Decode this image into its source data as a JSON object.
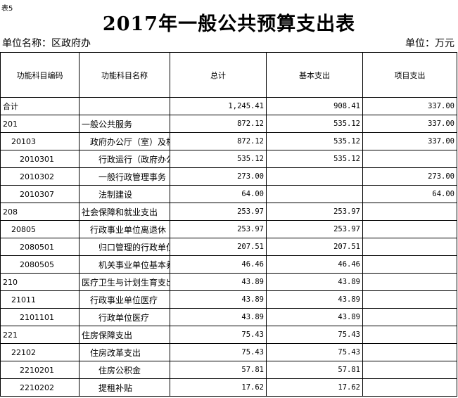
{
  "table_tag": "表5",
  "title": "2017年一般公共预算支出表",
  "unit_name": "单位名称：区政府办",
  "unit": "单位：万元",
  "headers": [
    "功能科目编码",
    "功能科目名称",
    "总计",
    "基本支出",
    "项目支出"
  ],
  "rows": [
    {
      "code": "合计",
      "name": "",
      "total": "1,245.41",
      "basic": "908.41",
      "project": "337.00",
      "level": 0
    },
    {
      "code": "201",
      "name": "一般公共服务",
      "total": "872.12",
      "basic": "535.12",
      "project": "337.00",
      "level": 0
    },
    {
      "code": "20103",
      "name": "政府办公厅（室）及相",
      "total": "872.12",
      "basic": "535.12",
      "project": "337.00",
      "level": 1
    },
    {
      "code": "2010301",
      "name": "行政运行（政府办公",
      "total": "535.12",
      "basic": "535.12",
      "project": "",
      "level": 2
    },
    {
      "code": "2010302",
      "name": "一般行政管理事务",
      "total": "273.00",
      "basic": "",
      "project": "273.00",
      "level": 2
    },
    {
      "code": "2010307",
      "name": "法制建设",
      "total": "64.00",
      "basic": "",
      "project": "64.00",
      "level": 2
    },
    {
      "code": "208",
      "name": "社会保障和就业支出",
      "total": "253.97",
      "basic": "253.97",
      "project": "",
      "level": 0
    },
    {
      "code": "20805",
      "name": "行政事业单位离退休",
      "total": "253.97",
      "basic": "253.97",
      "project": "",
      "level": 1
    },
    {
      "code": "2080501",
      "name": "归口管理的行政单位",
      "total": "207.51",
      "basic": "207.51",
      "project": "",
      "level": 2
    },
    {
      "code": "2080505",
      "name": "机关事业单位基本养",
      "total": "46.46",
      "basic": "46.46",
      "project": "",
      "level": 2
    },
    {
      "code": "210",
      "name": "医疗卫生与计划生育支出",
      "total": "43.89",
      "basic": "43.89",
      "project": "",
      "level": 0
    },
    {
      "code": "21011",
      "name": "行政事业单位医疗",
      "total": "43.89",
      "basic": "43.89",
      "project": "",
      "level": 1
    },
    {
      "code": "2101101",
      "name": "行政单位医疗",
      "total": "43.89",
      "basic": "43.89",
      "project": "",
      "level": 2
    },
    {
      "code": "221",
      "name": "住房保障支出",
      "total": "75.43",
      "basic": "75.43",
      "project": "",
      "level": 0
    },
    {
      "code": "22102",
      "name": "住房改革支出",
      "total": "75.43",
      "basic": "75.43",
      "project": "",
      "level": 1
    },
    {
      "code": "2210201",
      "name": "住房公积金",
      "total": "57.81",
      "basic": "57.81",
      "project": "",
      "level": 2
    },
    {
      "code": "2210202",
      "name": "提租补贴",
      "total": "17.62",
      "basic": "17.62",
      "project": "",
      "level": 2
    }
  ]
}
